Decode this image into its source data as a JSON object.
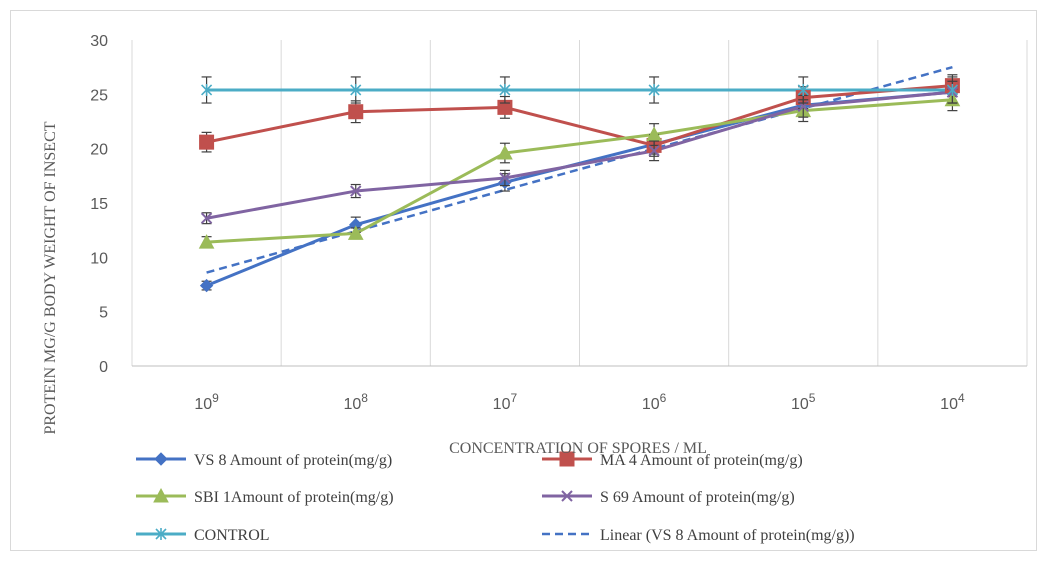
{
  "chart_data": {
    "type": "line",
    "title": "",
    "xlabel": "CONCENTRATION OF SPORES / ML",
    "ylabel": "PROTEIN MG/G BODY WEIGHT OF INSECT",
    "categories": [
      {
        "base": "10",
        "exp": "9"
      },
      {
        "base": "10",
        "exp": "8"
      },
      {
        "base": "10",
        "exp": "7"
      },
      {
        "base": "10",
        "exp": "6"
      },
      {
        "base": "10",
        "exp": "5"
      },
      {
        "base": "10",
        "exp": "4"
      }
    ],
    "y_ticks": [
      "0",
      "5",
      "10",
      "15",
      "20",
      "25",
      "30"
    ],
    "ylim": [
      0,
      30
    ],
    "grid": "vertical",
    "legend_position": "bottom",
    "series": [
      {
        "name": "VS 8 Amount of protein(mg/g)",
        "values": [
          7.4,
          13.0,
          16.9,
          20.4,
          24.0,
          25.2
        ],
        "error": [
          0.4,
          0.7,
          0.8,
          0.9,
          0.9,
          0.9
        ],
        "color": "#4472C4",
        "marker": "diamond",
        "dash": false
      },
      {
        "name": "MA 4 Amount of protein(mg/g)",
        "values": [
          20.6,
          23.4,
          23.8,
          20.3,
          24.7,
          25.8
        ],
        "error": [
          0.9,
          1.0,
          1.0,
          1.0,
          1.0,
          1.0
        ],
        "color": "#C0504D",
        "marker": "square",
        "dash": false
      },
      {
        "name": "SBI 1Amount of protein(mg/g)",
        "values": [
          11.4,
          12.2,
          19.6,
          21.3,
          23.5,
          24.5
        ],
        "error": [
          0.5,
          0.5,
          0.9,
          1.0,
          1.0,
          1.0
        ],
        "color": "#9BBB59",
        "marker": "triangle",
        "dash": false
      },
      {
        "name": "S 69 Amount of protein(mg/g)",
        "values": [
          13.6,
          16.1,
          17.3,
          19.8,
          23.9,
          25.2
        ],
        "error": [
          0.5,
          0.6,
          0.7,
          0.9,
          1.0,
          1.0
        ],
        "color": "#8064A2",
        "marker": "x",
        "dash": false
      },
      {
        "name": "CONTROL",
        "values": [
          25.4,
          25.4,
          25.4,
          25.4,
          25.4,
          25.4
        ],
        "error": [
          1.2,
          1.2,
          1.2,
          1.2,
          1.2,
          1.2
        ],
        "color": "#4BACC6",
        "marker": "star",
        "dash": false
      },
      {
        "name": "Linear (VS 8 Amount of protein(mg/g))",
        "values": [
          8.6,
          12.4,
          16.2,
          20.0,
          23.7,
          27.5
        ],
        "error": null,
        "color": "#4472C4",
        "marker": "none",
        "dash": true
      }
    ]
  }
}
